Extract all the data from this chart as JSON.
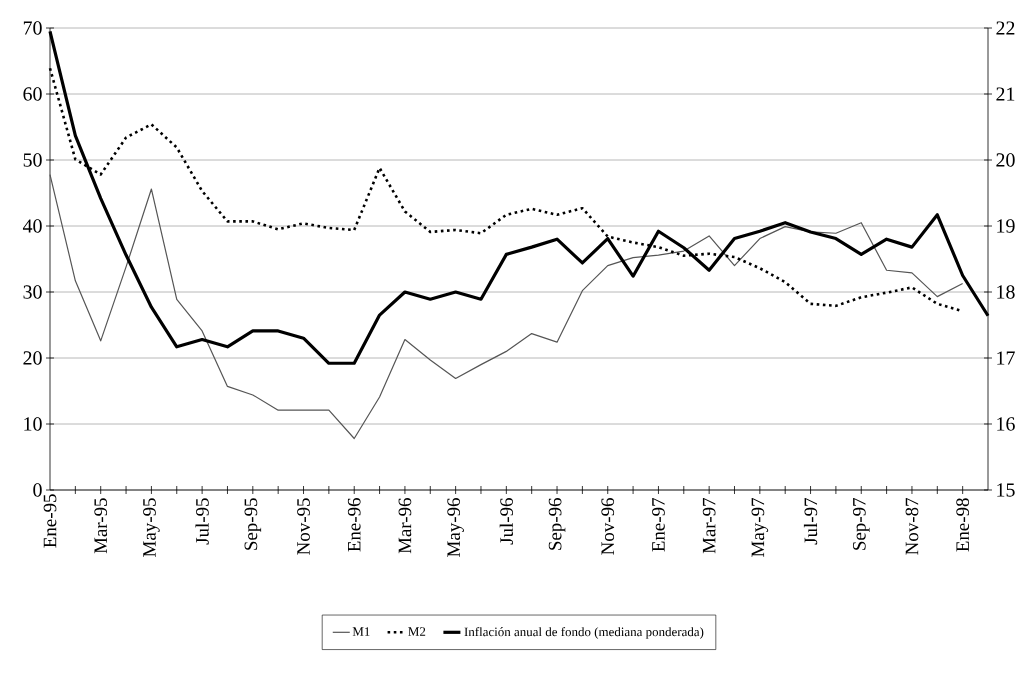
{
  "chart_data": {
    "type": "line",
    "categories": [
      "Ene-95",
      null,
      "Mar-95",
      null,
      "May-95",
      null,
      "Jul-95",
      null,
      "Sep-95",
      null,
      "Nov-95",
      null,
      "Ene-96",
      null,
      "Mar-96",
      null,
      "May-96",
      null,
      "Jul-96",
      null,
      "Sep-96",
      null,
      "Nov-96",
      null,
      "Ene-97",
      null,
      "Mar-97",
      null,
      "May-97",
      null,
      "Jul-97",
      null,
      "Sep-97",
      null,
      "Nov-87",
      null,
      "Ene-98",
      null
    ],
    "series": [
      {
        "name": "M1",
        "color": "#555555",
        "line_style": "solid",
        "values": [
          47.8,
          31.7,
          22.6,
          33.8,
          45.6,
          28.9,
          24.1,
          15.7,
          14.4,
          12.1,
          12.1,
          12.1,
          7.8,
          14.1,
          22.8,
          19.7,
          16.9,
          19.0,
          21.0,
          23.7,
          22.4,
          30.2,
          34.0,
          35.2,
          35.6,
          36.2,
          38.5,
          34.0,
          38.1,
          39.9,
          39.1,
          38.9,
          40.5,
          33.3,
          32.9,
          29.3,
          31.3,
          null
        ]
      },
      {
        "name": "M2",
        "color": "#000000",
        "line_style": "dotted",
        "values": [
          63.9,
          50.1,
          47.8,
          53.4,
          55.4,
          51.9,
          45.3,
          40.7,
          40.7,
          39.5,
          40.4,
          39.7,
          39.4,
          48.8,
          42.2,
          39.1,
          39.4,
          38.9,
          41.7,
          42.6,
          41.7,
          42.7,
          38.4,
          37.5,
          36.8,
          35.5,
          35.8,
          35.3,
          33.6,
          31.5,
          28.2,
          27.9,
          29.2,
          29.9,
          30.7,
          28.2,
          27.1,
          null
        ]
      },
      {
        "name": "Inflación anual de fondo (mediana ponderada)",
        "color": "#000000",
        "line_style": "solid",
        "axis": "y2",
        "values": [
          21.95,
          20.37,
          19.42,
          18.56,
          17.77,
          17.17,
          17.28,
          17.17,
          17.41,
          17.41,
          17.3,
          16.92,
          16.92,
          17.65,
          18.0,
          17.89,
          18.0,
          17.89,
          18.57,
          18.68,
          18.8,
          18.44,
          18.81,
          18.24,
          18.92,
          18.67,
          18.33,
          18.81,
          18.92,
          19.05,
          18.91,
          18.81,
          18.57,
          18.8,
          18.68,
          19.17,
          18.25,
          17.64
        ]
      }
    ],
    "ylim": [
      0,
      70
    ],
    "yticks": [
      0,
      10,
      20,
      30,
      40,
      50,
      60,
      70
    ],
    "y2lim": [
      15,
      22
    ],
    "y2ticks": [
      15,
      16,
      17,
      18,
      19,
      20,
      21,
      22
    ],
    "grid": "y",
    "legend": "bottom"
  }
}
